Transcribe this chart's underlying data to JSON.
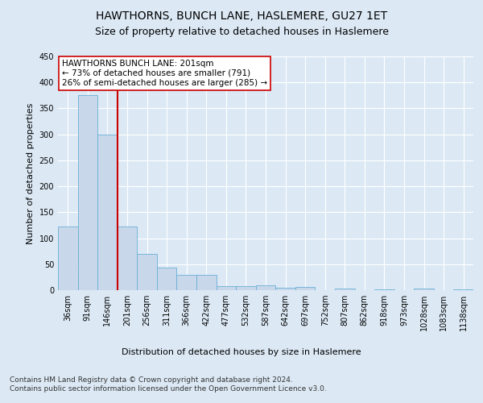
{
  "title": "HAWTHORNS, BUNCH LANE, HASLEMERE, GU27 1ET",
  "subtitle": "Size of property relative to detached houses in Haslemere",
  "xlabel_bottom": "Distribution of detached houses by size in Haslemere",
  "ylabel": "Number of detached properties",
  "bar_labels": [
    "36sqm",
    "91sqm",
    "146sqm",
    "201sqm",
    "256sqm",
    "311sqm",
    "366sqm",
    "422sqm",
    "477sqm",
    "532sqm",
    "587sqm",
    "642sqm",
    "697sqm",
    "752sqm",
    "807sqm",
    "862sqm",
    "918sqm",
    "973sqm",
    "1028sqm",
    "1083sqm",
    "1138sqm"
  ],
  "bar_values": [
    122,
    375,
    300,
    123,
    70,
    43,
    29,
    29,
    8,
    8,
    10,
    5,
    6,
    0,
    3,
    0,
    2,
    0,
    3,
    0,
    2
  ],
  "bar_color": "#c8d8ea",
  "bar_edge_color": "#6aaed6",
  "reference_line_index": 3,
  "reference_line_color": "#cc0000",
  "annotation_text": "HAWTHORNS BUNCH LANE: 201sqm\n← 73% of detached houses are smaller (791)\n26% of semi-detached houses are larger (285) →",
  "annotation_box_color": "#ffffff",
  "annotation_box_edge": "#cc0000",
  "ylim": [
    0,
    450
  ],
  "yticks": [
    0,
    50,
    100,
    150,
    200,
    250,
    300,
    350,
    400,
    450
  ],
  "background_color": "#dce9f5",
  "plot_bg_color": "#dce9f5",
  "footer": "Contains HM Land Registry data © Crown copyright and database right 2024.\nContains public sector information licensed under the Open Government Licence v3.0.",
  "title_fontsize": 10,
  "subtitle_fontsize": 9,
  "axis_label_fontsize": 8,
  "tick_fontsize": 7,
  "footer_fontsize": 6.5,
  "annot_fontsize": 7.5
}
